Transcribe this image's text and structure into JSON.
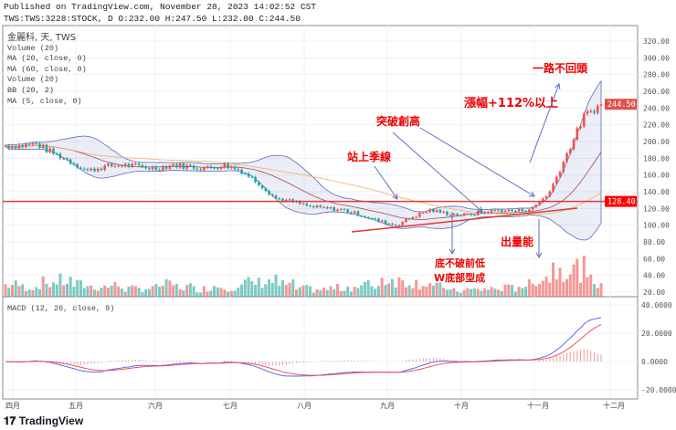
{
  "header": {
    "published": "Published on TradingView.com, November 28, 2023 14:02:52 CST",
    "ohlc": "TWS:TWS:3228:STOCK,  D O:232.00 H:247.50 L:232.00 C:244.50"
  },
  "legend": [
    "金麗科, 天, TWS",
    "Volume (20)",
    "MA (20, close, 0)",
    "MA (60, close, 0)",
    "Volume (20)",
    "BB (20, 2)",
    "MA (5, close, 0)"
  ],
  "macd_label": "MACD (12, 26, close, 9)",
  "brand": "TradingView",
  "chart_data": [
    {
      "type": "candlestick",
      "pane": "price",
      "yticks": [
        "320.00",
        "300.00",
        "280.00",
        "260.00",
        "240.00",
        "220.00",
        "200.00",
        "180.00",
        "160.00",
        "140.00",
        "120.00",
        "100.00",
        "80.00",
        "60.00",
        "40.00",
        "20.00"
      ],
      "ylim": [
        20,
        320
      ],
      "xticks": [
        "四月",
        "五月",
        "六月",
        "七月",
        "八月",
        "九月",
        "十月",
        "十一月",
        "十二月"
      ],
      "weekly_close": [
        195,
        197,
        186,
        176,
        165,
        170,
        172,
        170,
        168,
        172,
        170,
        168,
        172,
        165,
        150,
        132,
        128,
        122,
        120,
        118,
        112,
        105,
        100,
        110,
        118,
        114,
        112,
        115,
        118,
        117,
        120,
        140,
        185,
        230,
        244.5
      ],
      "volume_relative": [
        30,
        25,
        35,
        40,
        30,
        25,
        28,
        20,
        22,
        30,
        25,
        20,
        28,
        25,
        35,
        40,
        30,
        20,
        18,
        22,
        25,
        30,
        45,
        40,
        35,
        25,
        15,
        18,
        20,
        22,
        30,
        50,
        75,
        70,
        40
      ],
      "last_price": "244.50",
      "horizontal_line": "128.40",
      "colors": {
        "up": "#ef5350",
        "down": "#26a69a",
        "hline": "#e53935",
        "bb": "#5c6bc0",
        "ma20": "#a0504a",
        "ma60": "#f0b060"
      }
    },
    {
      "type": "line",
      "pane": "macd",
      "yticks": [
        "40.0000",
        "20.0000",
        "0.0000",
        "-20.0000"
      ],
      "ylim": [
        -25,
        42
      ],
      "colors": {
        "macd": "#5c6bf0",
        "signal": "#ef5350",
        "hist": "#ef9a9a"
      }
    }
  ],
  "annotations": {
    "a1": "一路不回頭",
    "a2": "漲幅+112%以上",
    "a3": "突破創高",
    "a4": "站上季線",
    "a5": "底不破前低",
    "a6": "W底部型成",
    "a7": "出量能"
  }
}
